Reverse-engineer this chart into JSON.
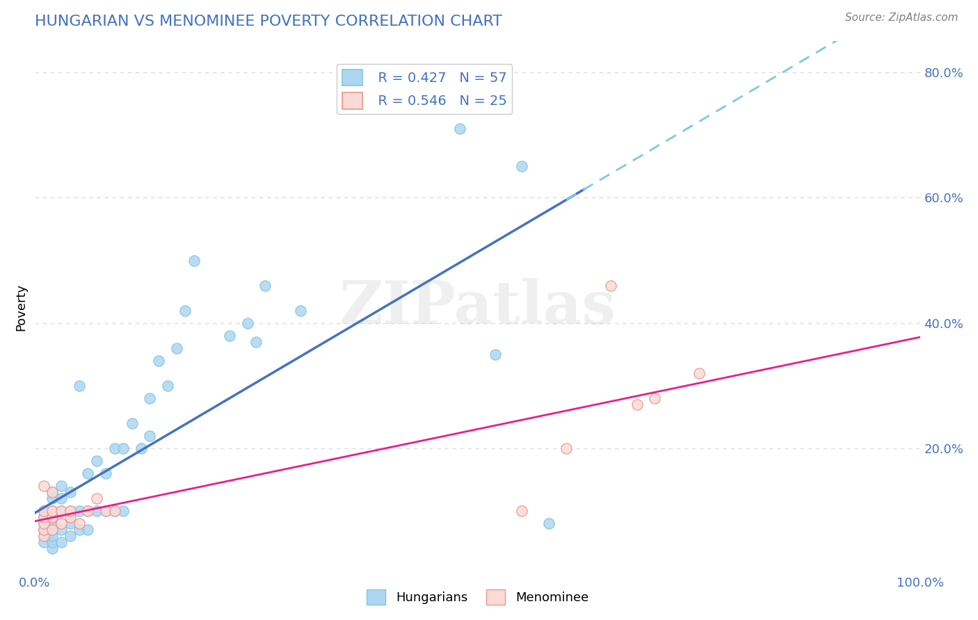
{
  "title": "HUNGARIAN VS MENOMINEE POVERTY CORRELATION CHART",
  "source": "Source: ZipAtlas.com",
  "xlabel": "",
  "ylabel": "Poverty",
  "xlim": [
    0.0,
    1.0
  ],
  "ylim": [
    0.0,
    0.85
  ],
  "blue_color": "#7EC8E3",
  "blue_fill": "#AED6F1",
  "pink_color": "#F1948A",
  "pink_fill": "#FADBD8",
  "trend_blue": "#4472C4",
  "trend_pink": "#E91E8C",
  "R_blue": 0.427,
  "N_blue": 57,
  "R_pink": 0.546,
  "N_pink": 25,
  "grid_color": "#DDDDDD",
  "background_color": "#FFFFFF",
  "title_color": "#4472C4",
  "watermark": "ZIPatlas",
  "blue_scatter_x": [
    0.01,
    0.01,
    0.01,
    0.01,
    0.01,
    0.01,
    0.01,
    0.02,
    0.02,
    0.02,
    0.02,
    0.02,
    0.02,
    0.02,
    0.02,
    0.02,
    0.03,
    0.03,
    0.03,
    0.03,
    0.03,
    0.04,
    0.04,
    0.04,
    0.04,
    0.05,
    0.05,
    0.05,
    0.06,
    0.06,
    0.06,
    0.07,
    0.07,
    0.08,
    0.08,
    0.09,
    0.09,
    0.1,
    0.1,
    0.11,
    0.12,
    0.13,
    0.13,
    0.14,
    0.15,
    0.16,
    0.17,
    0.18,
    0.22,
    0.24,
    0.25,
    0.26,
    0.3,
    0.48,
    0.52,
    0.55,
    0.58
  ],
  "blue_scatter_y": [
    0.05,
    0.06,
    0.07,
    0.07,
    0.08,
    0.09,
    0.1,
    0.04,
    0.05,
    0.06,
    0.07,
    0.08,
    0.09,
    0.1,
    0.12,
    0.13,
    0.05,
    0.07,
    0.1,
    0.12,
    0.14,
    0.06,
    0.08,
    0.1,
    0.13,
    0.07,
    0.1,
    0.3,
    0.07,
    0.1,
    0.16,
    0.1,
    0.18,
    0.1,
    0.16,
    0.1,
    0.2,
    0.1,
    0.2,
    0.24,
    0.2,
    0.22,
    0.28,
    0.34,
    0.3,
    0.36,
    0.42,
    0.5,
    0.38,
    0.4,
    0.37,
    0.46,
    0.42,
    0.71,
    0.35,
    0.65,
    0.08
  ],
  "pink_scatter_x": [
    0.01,
    0.01,
    0.01,
    0.01,
    0.01,
    0.01,
    0.02,
    0.02,
    0.02,
    0.02,
    0.03,
    0.03,
    0.04,
    0.04,
    0.05,
    0.06,
    0.07,
    0.08,
    0.09,
    0.55,
    0.6,
    0.65,
    0.68,
    0.7,
    0.75
  ],
  "pink_scatter_y": [
    0.06,
    0.07,
    0.08,
    0.09,
    0.1,
    0.14,
    0.07,
    0.09,
    0.1,
    0.13,
    0.08,
    0.1,
    0.09,
    0.1,
    0.08,
    0.1,
    0.12,
    0.1,
    0.1,
    0.1,
    0.2,
    0.46,
    0.27,
    0.28,
    0.32
  ]
}
